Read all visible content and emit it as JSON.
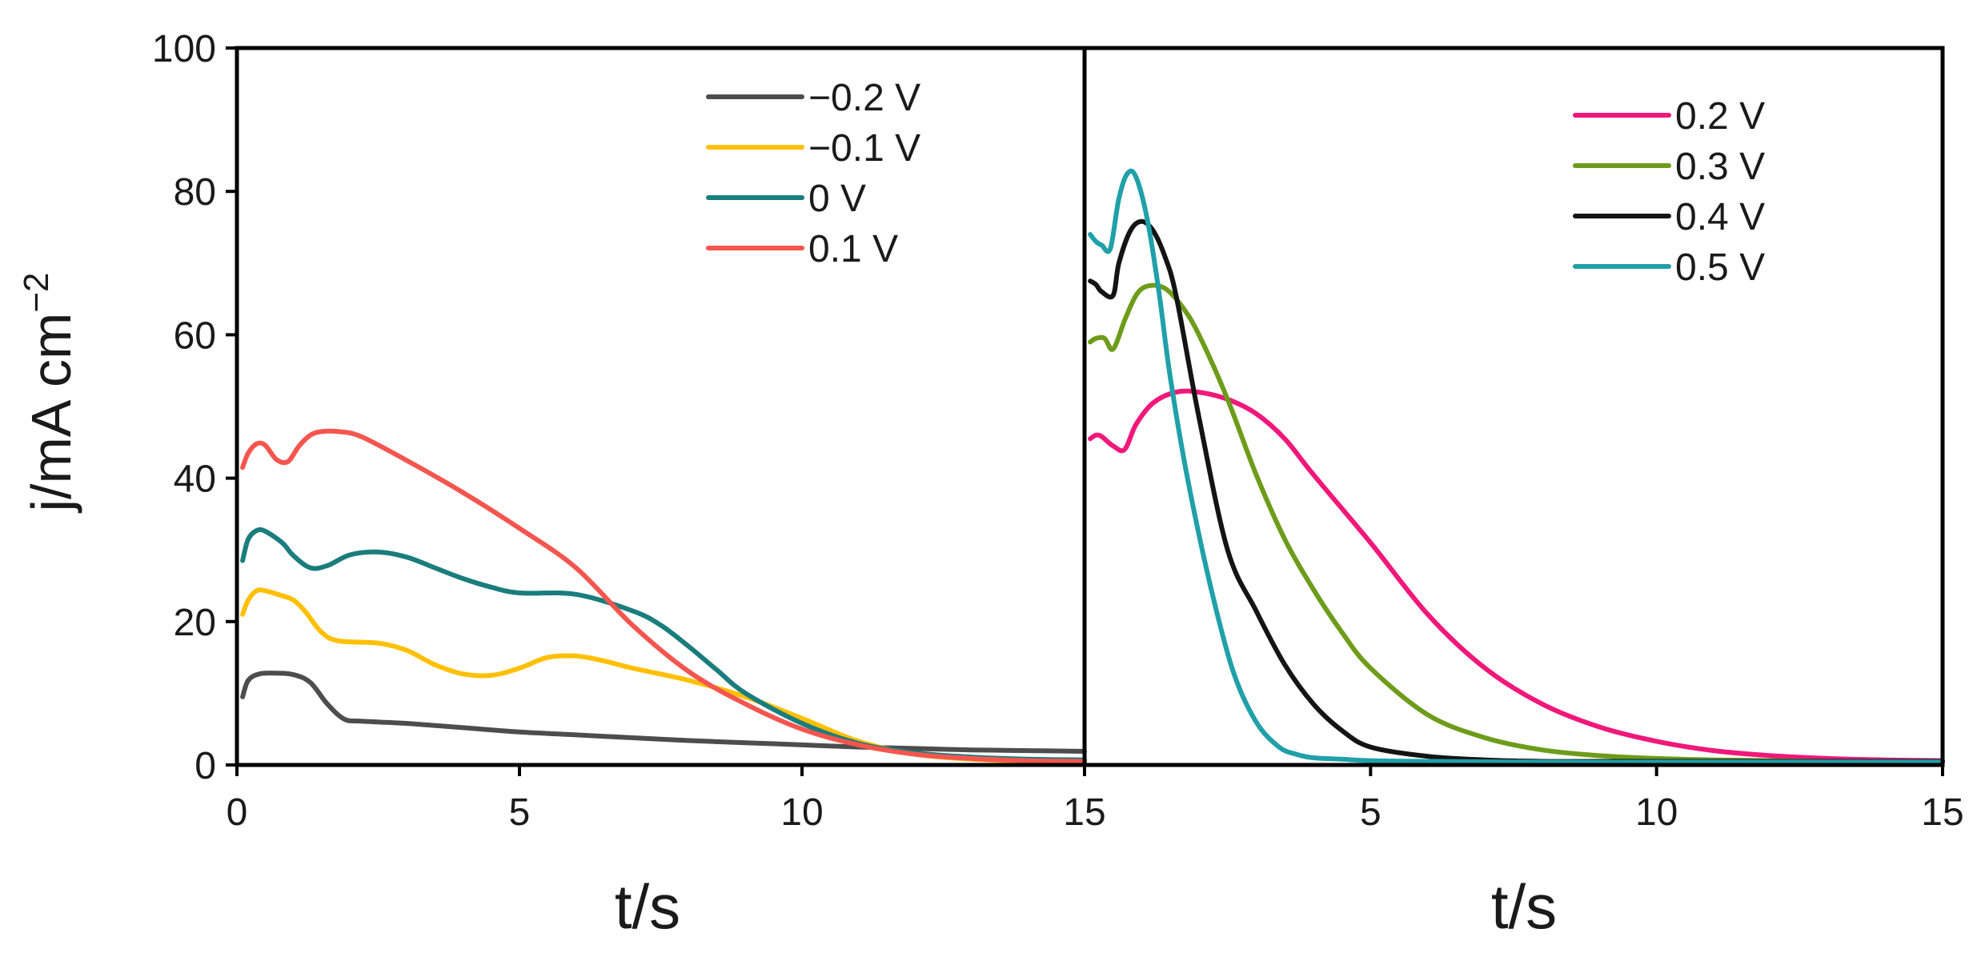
{
  "chart_data": [
    {
      "type": "line",
      "panel": "left",
      "title": "",
      "xlabel": "t/s",
      "ylabel": "j/mA cm",
      "ylabel_sup": "−2",
      "xlim": [
        0,
        15
      ],
      "ylim": [
        0,
        100
      ],
      "xticks": [
        "0",
        "5",
        "10",
        "15"
      ],
      "yticks": [
        "0",
        "20",
        "40",
        "60",
        "80",
        "100"
      ],
      "legend_position": "top-right",
      "series": [
        {
          "name": "−0.2 V",
          "color": "#4d4d4d",
          "x": [
            0.1,
            0.2,
            0.4,
            0.7,
            1.0,
            1.3,
            1.6,
            1.9,
            2.2,
            3.0,
            4.0,
            5.0,
            6.0,
            7.0,
            8.0,
            9.0,
            10.0,
            11.0,
            12.0,
            13.0,
            14.0,
            15.0
          ],
          "y": [
            9.5,
            11.8,
            12.7,
            12.8,
            12.6,
            11.5,
            8.5,
            6.4,
            6.1,
            5.8,
            5.2,
            4.6,
            4.2,
            3.8,
            3.4,
            3.1,
            2.8,
            2.5,
            2.3,
            2.1,
            2.0,
            1.9
          ]
        },
        {
          "name": "−0.1 V",
          "color": "#ffc000",
          "x": [
            0.1,
            0.2,
            0.35,
            0.5,
            0.8,
            1.0,
            1.2,
            1.5,
            1.8,
            2.5,
            3.0,
            3.5,
            4.0,
            4.5,
            5.0,
            5.5,
            6.0,
            6.5,
            7.0,
            8.0,
            9.0,
            10.0,
            11.0,
            12.0,
            13.0,
            14.0,
            15.0
          ],
          "y": [
            21,
            23,
            24.3,
            24.3,
            23.6,
            23.0,
            21.5,
            18.5,
            17.3,
            17.0,
            16.0,
            14.0,
            12.7,
            12.5,
            13.5,
            15.0,
            15.2,
            14.5,
            13.5,
            11.8,
            9.5,
            6.5,
            3.3,
            1.5,
            0.8,
            0.5,
            0.4
          ]
        },
        {
          "name": "0 V",
          "color": "#1a7d7d",
          "x": [
            0.1,
            0.2,
            0.35,
            0.5,
            0.8,
            1.0,
            1.3,
            1.6,
            2.0,
            2.5,
            3.0,
            3.5,
            4.0,
            4.5,
            5.0,
            6.0,
            7.0,
            7.5,
            8.0,
            8.5,
            9.0,
            10.0,
            11.0,
            12.0,
            13.0,
            14.0,
            15.0
          ],
          "y": [
            28.5,
            31.5,
            32.7,
            32.6,
            31.0,
            29.2,
            27.5,
            27.8,
            29.3,
            29.7,
            29.0,
            27.5,
            26.0,
            24.8,
            24.0,
            23.8,
            21.5,
            19.5,
            16.5,
            13.2,
            10.0,
            5.8,
            3.0,
            1.7,
            1.1,
            0.8,
            0.7
          ]
        },
        {
          "name": "0.1 V",
          "color": "#f4564f",
          "x": [
            0.1,
            0.2,
            0.35,
            0.5,
            0.7,
            0.9,
            1.1,
            1.3,
            1.5,
            1.8,
            2.2,
            3.0,
            4.0,
            5.0,
            6.0,
            7.0,
            8.0,
            9.0,
            10.0,
            11.0,
            12.0,
            13.0,
            14.0,
            15.0
          ],
          "y": [
            41.5,
            43.5,
            44.8,
            44.6,
            42.6,
            42.3,
            44.5,
            46.0,
            46.5,
            46.5,
            45.8,
            42.5,
            38.0,
            33.0,
            27.5,
            19.5,
            13.0,
            8.5,
            5.0,
            2.8,
            1.5,
            0.9,
            0.6,
            0.5
          ]
        }
      ]
    },
    {
      "type": "line",
      "panel": "right",
      "title": "",
      "xlabel": "t/s",
      "xlim": [
        0,
        15
      ],
      "ylim": [
        0,
        100
      ],
      "xticks": [
        "",
        "5",
        "10",
        "15"
      ],
      "legend_position": "top-right",
      "series": [
        {
          "name": "0.2 V",
          "color": "#f0187a",
          "x": [
            0.1,
            0.2,
            0.3,
            0.5,
            0.7,
            0.9,
            1.2,
            1.6,
            2.0,
            2.5,
            3.0,
            3.5,
            4.0,
            5.0,
            6.0,
            7.0,
            8.0,
            9.0,
            10.0,
            11.0,
            12.0,
            13.0,
            14.0,
            15.0
          ],
          "y": [
            45.5,
            46.0,
            45.8,
            44.5,
            44.0,
            47.5,
            50.5,
            52.0,
            52.0,
            51.0,
            49.0,
            45.5,
            40.5,
            31.0,
            21.0,
            13.5,
            8.5,
            5.3,
            3.3,
            2.0,
            1.3,
            0.9,
            0.7,
            0.6
          ]
        },
        {
          "name": "0.3 V",
          "color": "#6e9c1a",
          "x": [
            0.1,
            0.2,
            0.35,
            0.5,
            0.7,
            0.9,
            1.1,
            1.4,
            1.7,
            2.0,
            2.5,
            3.0,
            3.5,
            4.0,
            4.5,
            5.0,
            6.0,
            7.0,
            8.0,
            9.0,
            10.0,
            11.0,
            12.0,
            13.0,
            14.0,
            15.0
          ],
          "y": [
            59.0,
            59.5,
            59.5,
            58.0,
            62.0,
            65.5,
            66.8,
            66.5,
            64.0,
            60.0,
            51.0,
            40.5,
            31.5,
            24.5,
            18.5,
            13.5,
            7.0,
            3.8,
            2.1,
            1.3,
            0.9,
            0.7,
            0.6,
            0.5,
            0.5,
            0.5
          ]
        },
        {
          "name": "0.4 V",
          "color": "#141414",
          "x": [
            0.1,
            0.2,
            0.3,
            0.5,
            0.6,
            0.8,
            1.0,
            1.2,
            1.4,
            1.6,
            2.0,
            2.5,
            3.0,
            3.5,
            4.0,
            4.5,
            5.0,
            6.0,
            7.0,
            8.0,
            9.0,
            10.0,
            12.0,
            15.0
          ],
          "y": [
            67.5,
            67.0,
            66.0,
            65.5,
            70.0,
            74.5,
            75.8,
            74.5,
            71.0,
            65.5,
            48.5,
            30.0,
            21.5,
            14.0,
            8.5,
            4.8,
            2.5,
            1.2,
            0.7,
            0.5,
            0.5,
            0.5,
            0.5,
            0.5
          ]
        },
        {
          "name": "0.5 V",
          "color": "#20a0a8",
          "x": [
            0.1,
            0.2,
            0.3,
            0.45,
            0.6,
            0.75,
            0.9,
            1.1,
            1.3,
            1.5,
            1.8,
            2.2,
            2.6,
            3.0,
            3.4,
            3.7,
            4.0,
            4.5,
            5.0,
            6.0,
            8.0,
            10.0,
            12.0,
            15.0
          ],
          "y": [
            74.0,
            73.0,
            72.5,
            72.0,
            79.0,
            82.5,
            82.0,
            76.0,
            66.0,
            54.0,
            40.0,
            25.0,
            13.0,
            6.0,
            2.5,
            1.5,
            1.0,
            0.8,
            0.6,
            0.5,
            0.4,
            0.4,
            0.4,
            0.4
          ]
        }
      ]
    }
  ]
}
